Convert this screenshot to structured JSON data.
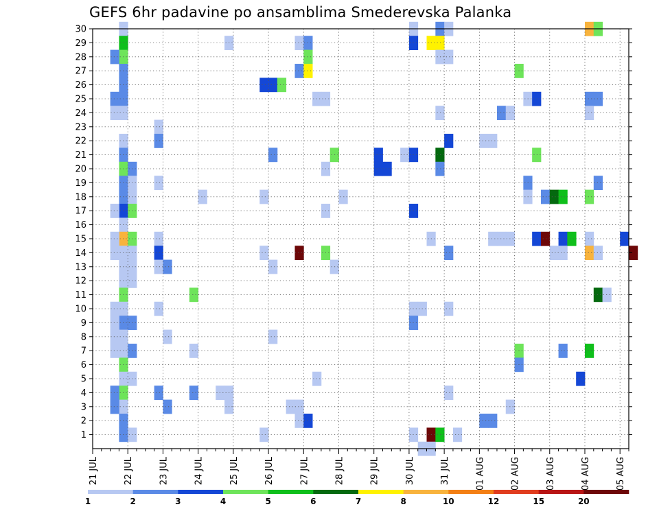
{
  "chart_data": {
    "type": "heatmap",
    "title": "GEFS 6hr padavine po ansamblima Smederevska Palanka",
    "xlabel": "",
    "ylabel": "",
    "x_unit": "6-hour step from 21 JUL 00 UTC",
    "x_range": [
      0,
      61
    ],
    "y_range": [
      0,
      30
    ],
    "y_ticks": [
      1,
      2,
      3,
      4,
      5,
      6,
      7,
      8,
      9,
      10,
      11,
      12,
      13,
      14,
      15,
      16,
      17,
      18,
      19,
      20,
      21,
      22,
      23,
      24,
      25,
      26,
      27,
      28,
      29,
      30
    ],
    "x_ticks": [
      {
        "step": 0,
        "label": "21 JUL"
      },
      {
        "step": 4,
        "label": "22 JUL"
      },
      {
        "step": 8,
        "label": "23 JUL"
      },
      {
        "step": 12,
        "label": "24 JUL"
      },
      {
        "step": 16,
        "label": "25 JUL"
      },
      {
        "step": 20,
        "label": "26 JUL"
      },
      {
        "step": 24,
        "label": "27 JUL"
      },
      {
        "step": 28,
        "label": "28 JUL"
      },
      {
        "step": 32,
        "label": "29 JUL"
      },
      {
        "step": 36,
        "label": "30 JUL"
      },
      {
        "step": 40,
        "label": "31 JUL"
      },
      {
        "step": 44,
        "label": "01 AUG"
      },
      {
        "step": 48,
        "label": "02 AUG"
      },
      {
        "step": 52,
        "label": "03 AUG"
      },
      {
        "step": 56,
        "label": "04 AUG"
      },
      {
        "step": 60,
        "label": "05 AUG"
      }
    ],
    "grid": true,
    "colorbar": {
      "labels": [
        "1",
        "2",
        "3",
        "4",
        "5",
        "6",
        "7",
        "8",
        "10",
        "12",
        "15",
        "20"
      ],
      "colors": [
        "#b7c8f2",
        "#5a8ae6",
        "#1447d6",
        "#6ee45a",
        "#0fbf1b",
        "#04690f",
        "#fff200",
        "#f8b33d",
        "#f37f14",
        "#e03c1e",
        "#b81414",
        "#6d0708"
      ],
      "placement": "bottom"
    },
    "cells": [
      [
        3,
        30,
        0
      ],
      [
        3,
        29,
        4
      ],
      [
        3,
        28,
        3
      ],
      [
        3,
        27,
        1
      ],
      [
        3,
        26,
        1
      ],
      [
        3,
        25,
        1
      ],
      [
        3,
        24,
        0
      ],
      [
        3,
        22,
        0
      ],
      [
        3,
        21,
        1
      ],
      [
        3,
        20,
        3
      ],
      [
        3,
        19,
        1
      ],
      [
        3,
        18,
        1
      ],
      [
        3,
        17,
        2
      ],
      [
        3,
        16,
        0
      ],
      [
        3,
        15,
        7
      ],
      [
        3,
        14,
        0
      ],
      [
        3,
        13,
        0
      ],
      [
        3,
        12,
        0
      ],
      [
        3,
        11,
        3
      ],
      [
        3,
        10,
        0
      ],
      [
        3,
        9,
        1
      ],
      [
        3,
        8,
        0
      ],
      [
        3,
        7,
        0
      ],
      [
        3,
        6,
        3
      ],
      [
        3,
        5,
        0
      ],
      [
        3,
        4,
        3
      ],
      [
        3,
        3,
        0
      ],
      [
        3,
        2,
        1
      ],
      [
        3,
        1,
        1
      ],
      [
        2,
        28,
        1
      ],
      [
        2,
        25,
        1
      ],
      [
        2,
        24,
        0
      ],
      [
        2,
        17,
        0
      ],
      [
        2,
        15,
        0
      ],
      [
        2,
        14,
        0
      ],
      [
        2,
        10,
        0
      ],
      [
        2,
        9,
        0
      ],
      [
        2,
        8,
        0
      ],
      [
        2,
        7,
        0
      ],
      [
        2,
        4,
        1
      ],
      [
        2,
        3,
        1
      ],
      [
        4,
        20,
        1
      ],
      [
        4,
        19,
        0
      ],
      [
        4,
        18,
        0
      ],
      [
        4,
        17,
        3
      ],
      [
        4,
        15,
        3
      ],
      [
        4,
        14,
        0
      ],
      [
        4,
        13,
        0
      ],
      [
        4,
        12,
        0
      ],
      [
        4,
        9,
        1
      ],
      [
        4,
        7,
        1
      ],
      [
        4,
        5,
        0
      ],
      [
        4,
        1,
        0
      ],
      [
        7,
        23,
        0
      ],
      [
        7,
        22,
        1
      ],
      [
        7,
        19,
        0
      ],
      [
        7,
        15,
        0
      ],
      [
        7,
        14,
        2
      ],
      [
        7,
        13,
        0
      ],
      [
        7,
        10,
        0
      ],
      [
        7,
        4,
        1
      ],
      [
        8,
        13,
        1
      ],
      [
        8,
        8,
        0
      ],
      [
        8,
        3,
        1
      ],
      [
        11,
        11,
        3
      ],
      [
        11,
        7,
        0
      ],
      [
        11,
        4,
        1
      ],
      [
        12,
        18,
        0
      ],
      [
        15,
        29,
        0
      ],
      [
        15,
        4,
        0
      ],
      [
        15,
        3,
        0
      ],
      [
        14,
        4,
        0
      ],
      [
        19,
        26,
        2
      ],
      [
        19,
        18,
        0
      ],
      [
        19,
        14,
        0
      ],
      [
        19,
        1,
        0
      ],
      [
        20,
        26,
        2
      ],
      [
        20,
        21,
        1
      ],
      [
        20,
        13,
        0
      ],
      [
        20,
        8,
        0
      ],
      [
        21,
        26,
        3
      ],
      [
        22,
        3,
        0
      ],
      [
        23,
        29,
        0
      ],
      [
        23,
        27,
        1
      ],
      [
        23,
        14,
        11
      ],
      [
        23,
        3,
        0
      ],
      [
        23,
        2,
        0
      ],
      [
        24,
        29,
        1
      ],
      [
        24,
        28,
        3
      ],
      [
        24,
        27,
        6
      ],
      [
        24,
        2,
        2
      ],
      [
        25,
        25,
        0
      ],
      [
        25,
        5,
        0
      ],
      [
        26,
        25,
        0
      ],
      [
        26,
        20,
        0
      ],
      [
        26,
        17,
        0
      ],
      [
        26,
        14,
        3
      ],
      [
        27,
        21,
        3
      ],
      [
        27,
        13,
        0
      ],
      [
        28,
        18,
        0
      ],
      [
        32,
        21,
        2
      ],
      [
        32,
        20,
        2
      ],
      [
        33,
        20,
        2
      ],
      [
        35,
        21,
        0
      ],
      [
        36,
        30,
        0
      ],
      [
        36,
        29,
        2
      ],
      [
        36,
        21,
        2
      ],
      [
        36,
        17,
        2
      ],
      [
        36,
        10,
        0
      ],
      [
        36,
        9,
        1
      ],
      [
        36,
        1,
        0
      ],
      [
        37,
        10,
        0
      ],
      [
        37,
        0,
        0
      ],
      [
        38,
        29,
        6
      ],
      [
        38,
        15,
        0
      ],
      [
        38,
        1,
        11
      ],
      [
        38,
        0,
        0
      ],
      [
        39,
        30,
        1
      ],
      [
        39,
        29,
        6
      ],
      [
        39,
        28,
        0
      ],
      [
        39,
        24,
        0
      ],
      [
        39,
        21,
        5
      ],
      [
        39,
        20,
        1
      ],
      [
        39,
        1,
        4
      ],
      [
        40,
        30,
        0
      ],
      [
        40,
        28,
        0
      ],
      [
        40,
        22,
        2
      ],
      [
        40,
        14,
        1
      ],
      [
        40,
        10,
        0
      ],
      [
        40,
        4,
        0
      ],
      [
        41,
        1,
        0
      ],
      [
        44,
        22,
        0
      ],
      [
        44,
        2,
        1
      ],
      [
        45,
        22,
        0
      ],
      [
        45,
        2,
        1
      ],
      [
        46,
        24,
        1
      ],
      [
        47,
        24,
        0
      ],
      [
        47,
        15,
        0
      ],
      [
        47,
        3,
        0
      ],
      [
        45,
        15,
        0
      ],
      [
        46,
        15,
        0
      ],
      [
        48,
        27,
        3
      ],
      [
        48,
        7,
        3
      ],
      [
        48,
        6,
        1
      ],
      [
        49,
        25,
        0
      ],
      [
        49,
        19,
        1
      ],
      [
        49,
        18,
        0
      ],
      [
        50,
        25,
        2
      ],
      [
        50,
        21,
        3
      ],
      [
        50,
        15,
        2
      ],
      [
        51,
        18,
        1
      ],
      [
        51,
        15,
        11
      ],
      [
        52,
        18,
        5
      ],
      [
        52,
        14,
        0
      ],
      [
        53,
        18,
        4
      ],
      [
        53,
        15,
        2
      ],
      [
        53,
        14,
        0
      ],
      [
        53,
        7,
        1
      ],
      [
        54,
        15,
        4
      ],
      [
        55,
        5,
        2
      ],
      [
        56,
        30,
        7
      ],
      [
        56,
        25,
        1
      ],
      [
        56,
        24,
        0
      ],
      [
        56,
        18,
        3
      ],
      [
        56,
        15,
        0
      ],
      [
        56,
        14,
        7
      ],
      [
        56,
        7,
        4
      ],
      [
        57,
        30,
        3
      ],
      [
        57,
        25,
        1
      ],
      [
        57,
        19,
        1
      ],
      [
        57,
        14,
        0
      ],
      [
        57,
        11,
        5
      ],
      [
        58,
        11,
        0
      ],
      [
        60,
        15,
        2
      ],
      [
        61,
        14,
        11
      ]
    ]
  }
}
